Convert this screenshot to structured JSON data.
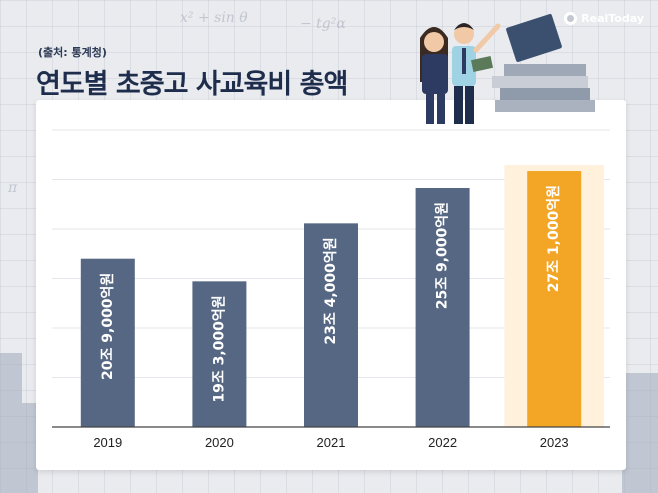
{
  "header": {
    "source": "(출처: 통계청)",
    "title": "연도별 초중고 사교육비 총액",
    "brand": "RealToday"
  },
  "colors": {
    "bar_default": "#566783",
    "bar_highlight": "#f3a626",
    "highlight_glow": "#fff1dc",
    "title": "#1f2d4d",
    "axis": "#444444",
    "grid": "#e3e6ea"
  },
  "chart_data": {
    "type": "bar",
    "title": "연도별 초중고 사교육비 총액",
    "xlabel": "",
    "ylabel": "",
    "categories": [
      "2019",
      "2020",
      "2021",
      "2022",
      "2023"
    ],
    "values": [
      20.9,
      19.3,
      23.4,
      25.9,
      27.1
    ],
    "data_labels": [
      "20조 9,000억원",
      "19조 3,000억원",
      "23조 4,000억원",
      "25조 9,000억원",
      "27조 1,000억원"
    ],
    "highlight_index": 4,
    "ylim": [
      9,
      30
    ],
    "grid": true,
    "legend": "none"
  }
}
